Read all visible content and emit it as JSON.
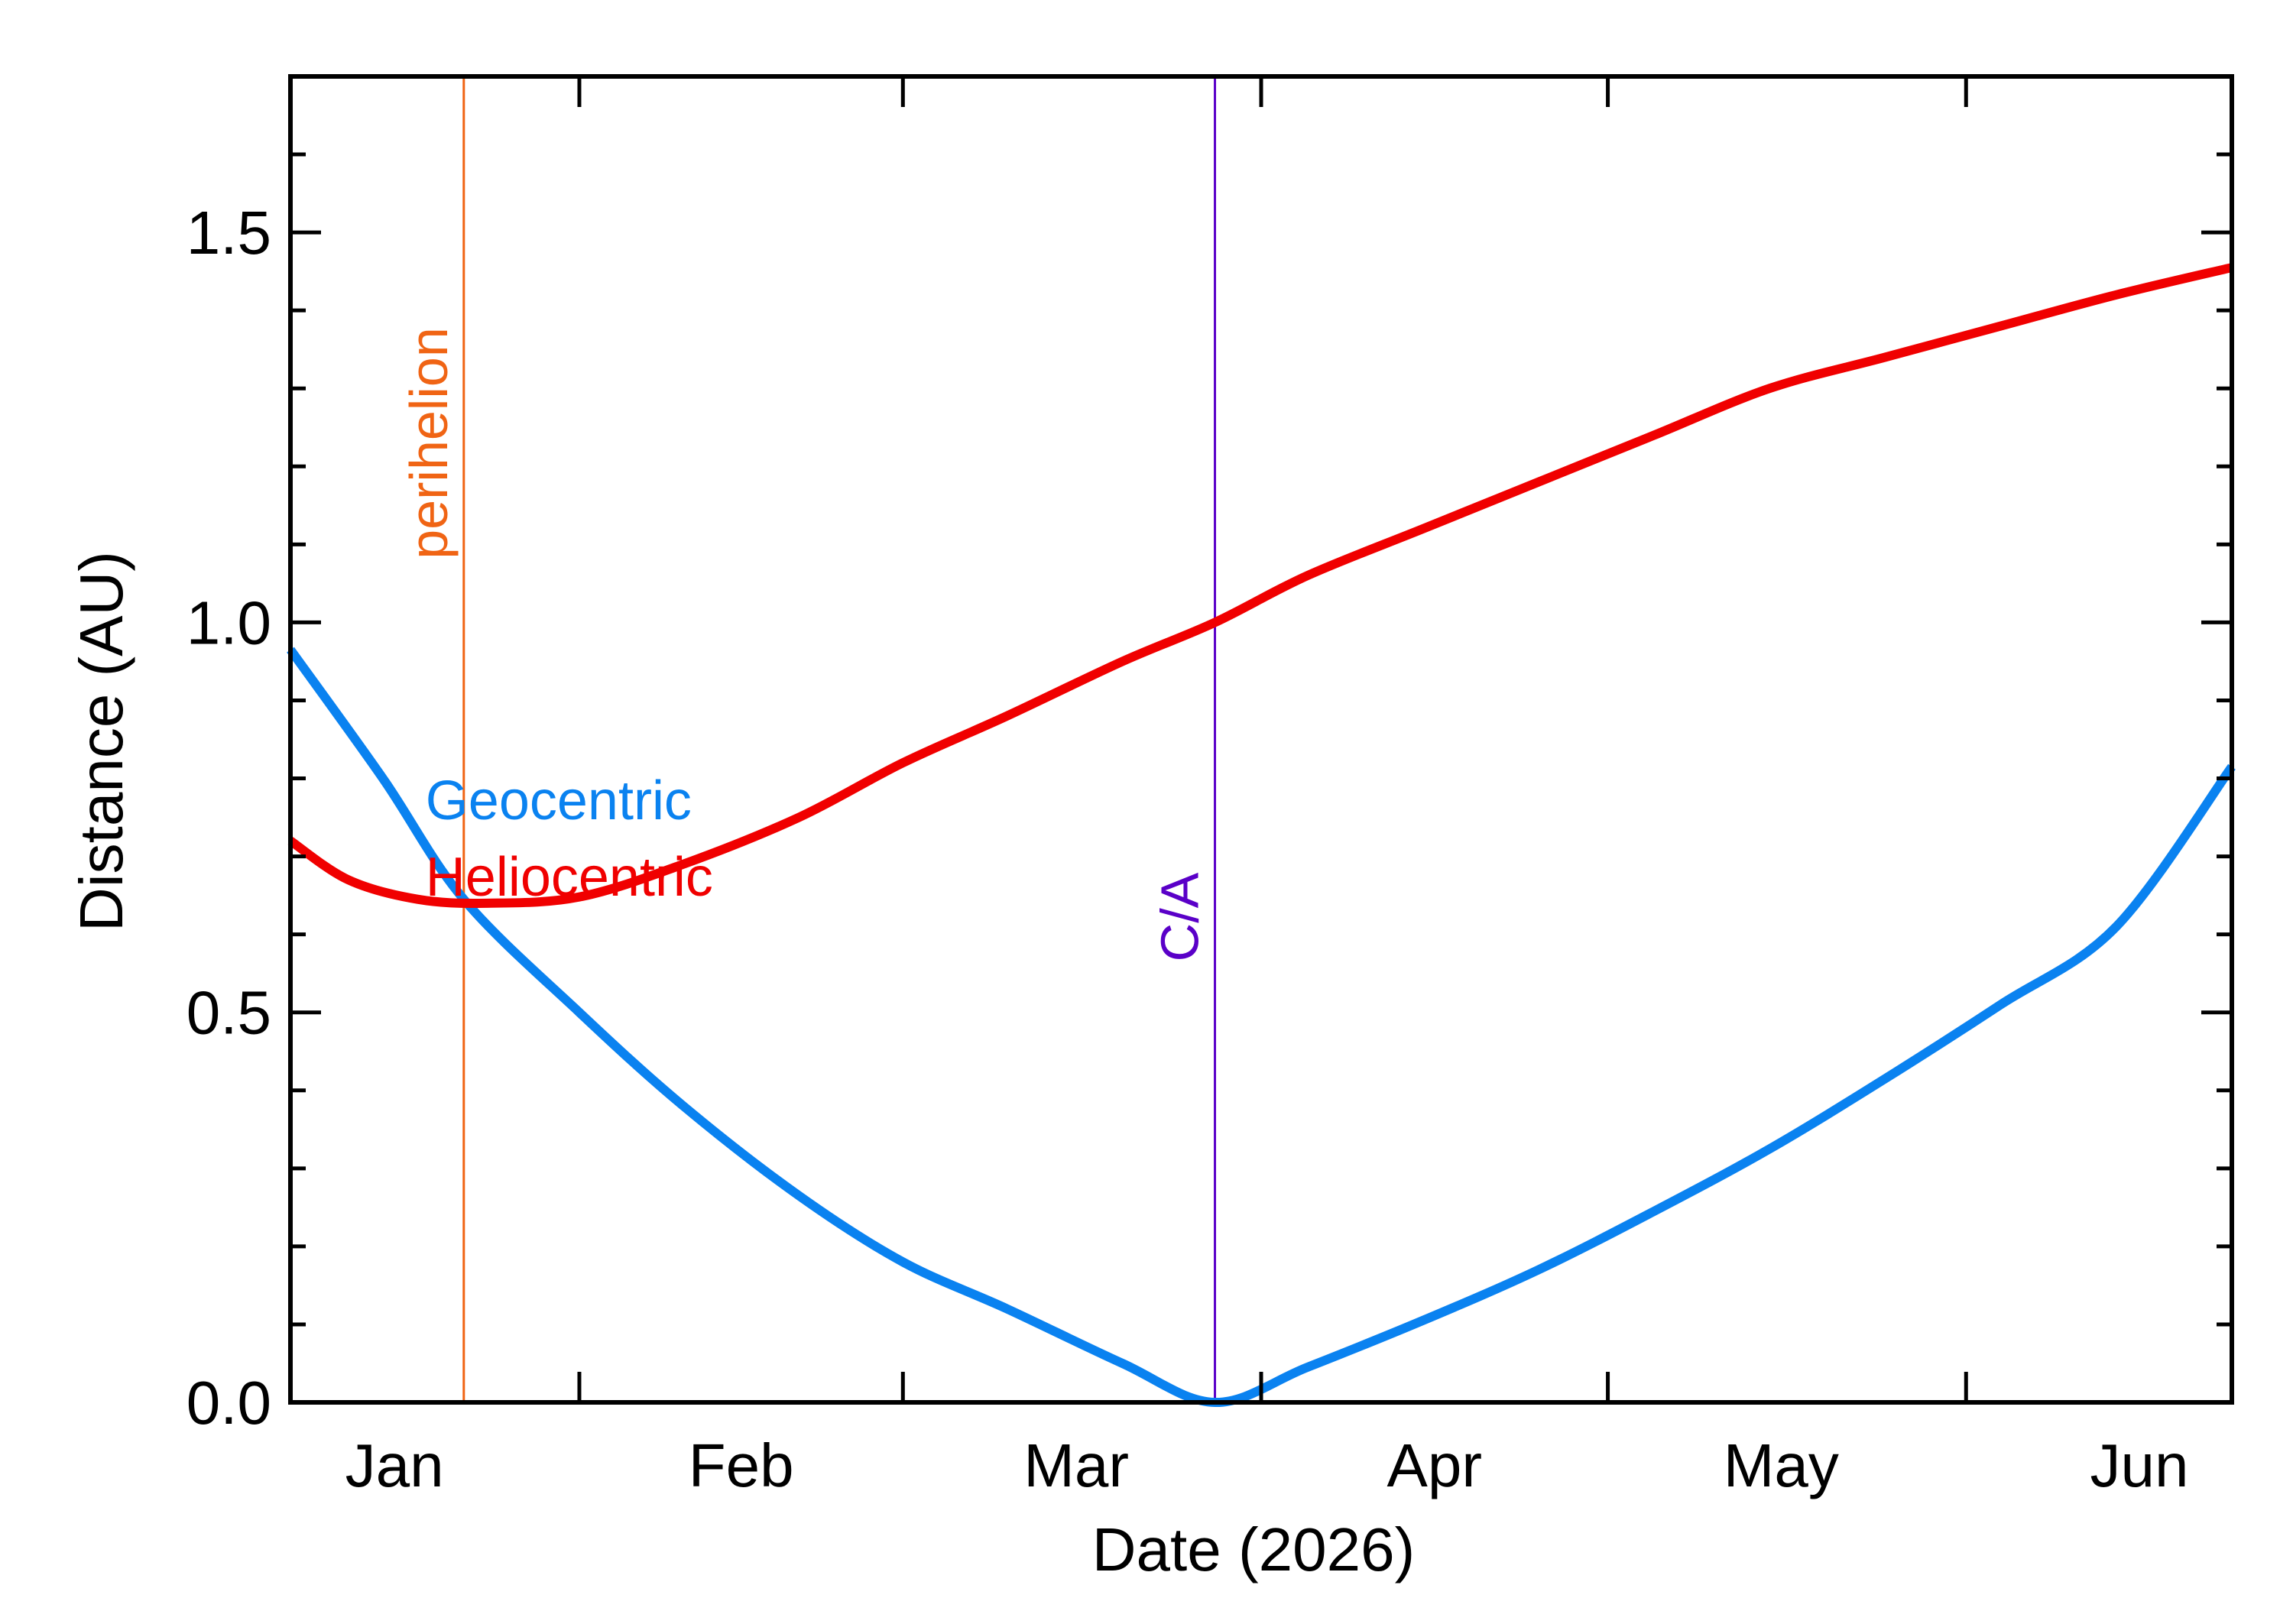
{
  "chart_data": {
    "type": "line",
    "title": "",
    "xlabel": "Date (2026)",
    "ylabel": "Distance (AU)",
    "xlim": [
      "2026-01-07",
      "2026-06-24"
    ],
    "ylim": [
      0,
      1.7
    ],
    "yticks": [
      0.0,
      0.5,
      1.0,
      1.5
    ],
    "ytick_labels": [
      "0.0",
      "0.5",
      "1.0",
      "1.5"
    ],
    "xtick_labels": [
      {
        "date": "2026-01-16",
        "label": "Jan"
      },
      {
        "date": "2026-02-15",
        "label": "Feb"
      },
      {
        "date": "2026-03-16",
        "label": "Mar"
      },
      {
        "date": "2026-04-16",
        "label": "Apr"
      },
      {
        "date": "2026-05-16",
        "label": "May"
      },
      {
        "date": "2026-06-16",
        "label": "Jun"
      }
    ],
    "xtick_dates": [
      "2026-02-01",
      "2026-03-01",
      "2026-04-01",
      "2026-05-01",
      "2026-06-01"
    ],
    "grid": false,
    "series": [
      {
        "name": "Geocentric",
        "color": "#0a82f0",
        "x": [
          "2026-01-07",
          "2026-01-15",
          "2026-01-22",
          "2026-02-01",
          "2026-02-10",
          "2026-02-20",
          "2026-03-01",
          "2026-03-10",
          "2026-03-20",
          "2026-03-28",
          "2026-04-05",
          "2026-04-15",
          "2026-04-25",
          "2026-05-05",
          "2026-05-15",
          "2026-05-25",
          "2026-06-04",
          "2026-06-14",
          "2026-06-24"
        ],
        "y": [
          0.965,
          0.8,
          0.645,
          0.5,
          0.38,
          0.265,
          0.18,
          0.12,
          0.05,
          0.0,
          0.045,
          0.105,
          0.17,
          0.245,
          0.325,
          0.415,
          0.51,
          0.61,
          0.815
        ]
      },
      {
        "name": "Heliocentric",
        "color": "#f00000",
        "x": [
          "2026-01-07",
          "2026-01-12",
          "2026-01-18",
          "2026-01-24",
          "2026-02-01",
          "2026-02-10",
          "2026-02-20",
          "2026-03-01",
          "2026-03-10",
          "2026-03-20",
          "2026-03-28",
          "2026-04-05",
          "2026-04-15",
          "2026-04-25",
          "2026-05-05",
          "2026-05-15",
          "2026-05-25",
          "2026-06-04",
          "2026-06-14",
          "2026-06-24"
        ],
        "y": [
          0.72,
          0.67,
          0.645,
          0.64,
          0.648,
          0.69,
          0.75,
          0.82,
          0.88,
          0.95,
          1.0,
          1.06,
          1.12,
          1.18,
          1.24,
          1.3,
          1.34,
          1.38,
          1.42,
          1.455
        ]
      }
    ],
    "vlines": [
      {
        "label": "perihelion",
        "date": "2026-01-22",
        "color": "#f06414"
      },
      {
        "label": "C/A",
        "date": "2026-03-28",
        "color": "#5a00c8"
      }
    ]
  }
}
